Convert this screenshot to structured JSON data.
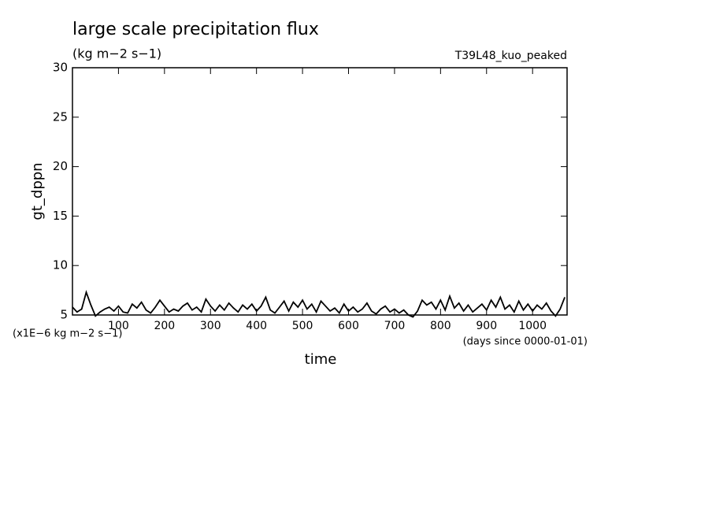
{
  "chart_data": {
    "type": "line",
    "title": "large scale precipitation flux",
    "subtitle": "(kg m−2 s−1)",
    "annotation_right": "T39L48_kuo_peaked",
    "unit_label": "(x1E−6 kg m−2 s−1)",
    "x_unit_label": "(days since 0000-01-01)",
    "xlabel": "time",
    "ylabel": "gt_dppn",
    "xlim": [
      0,
      1075
    ],
    "ylim": [
      5,
      30
    ],
    "xticks": [
      100,
      200,
      300,
      400,
      500,
      600,
      700,
      800,
      900,
      1000
    ],
    "yticks": [
      5,
      10,
      15,
      20,
      25,
      30
    ],
    "x": [
      0,
      10,
      20,
      30,
      40,
      50,
      60,
      70,
      80,
      90,
      100,
      110,
      120,
      130,
      140,
      150,
      160,
      170,
      180,
      190,
      200,
      210,
      220,
      230,
      240,
      250,
      260,
      270,
      280,
      290,
      300,
      310,
      320,
      330,
      340,
      350,
      360,
      370,
      380,
      390,
      400,
      410,
      420,
      430,
      440,
      450,
      460,
      470,
      480,
      490,
      500,
      510,
      520,
      530,
      540,
      550,
      560,
      570,
      580,
      590,
      600,
      610,
      620,
      630,
      640,
      650,
      660,
      670,
      680,
      690,
      700,
      710,
      720,
      730,
      740,
      750,
      760,
      770,
      780,
      790,
      800,
      810,
      820,
      830,
      840,
      850,
      860,
      870,
      880,
      890,
      900,
      910,
      920,
      930,
      940,
      950,
      960,
      970,
      980,
      990,
      1000,
      1010,
      1020,
      1030,
      1040,
      1050,
      1060,
      1070
    ],
    "series": [
      {
        "color": "#000000",
        "values": [
          5.8,
          5.3,
          5.6,
          7.3,
          6.0,
          4.9,
          5.3,
          5.6,
          5.8,
          5.4,
          5.9,
          5.3,
          5.2,
          6.1,
          5.7,
          6.3,
          5.5,
          5.2,
          5.8,
          6.5,
          5.9,
          5.3,
          5.6,
          5.4,
          5.9,
          6.2,
          5.5,
          5.8,
          5.3,
          6.6,
          5.9,
          5.4,
          6.0,
          5.5,
          6.2,
          5.7,
          5.3,
          6.0,
          5.6,
          6.1,
          5.4,
          5.9,
          6.8,
          5.5,
          5.2,
          5.8,
          6.4,
          5.4,
          6.3,
          5.8,
          6.5,
          5.6,
          6.1,
          5.3,
          6.4,
          5.9,
          5.4,
          5.7,
          5.2,
          6.1,
          5.4,
          5.8,
          5.3,
          5.6,
          6.2,
          5.4,
          5.1,
          5.6,
          5.9,
          5.3,
          5.6,
          5.2,
          5.5,
          5.0,
          4.8,
          5.4,
          6.5,
          6.0,
          6.3,
          5.6,
          6.5,
          5.5,
          6.9,
          5.7,
          6.2,
          5.4,
          6.0,
          5.3,
          5.7,
          6.1,
          5.5,
          6.5,
          5.8,
          6.8,
          5.6,
          6.0,
          5.3,
          6.4,
          5.5,
          6.1,
          5.4,
          6.0,
          5.6,
          6.2,
          5.4,
          4.9,
          5.6,
          6.8
        ]
      }
    ]
  }
}
